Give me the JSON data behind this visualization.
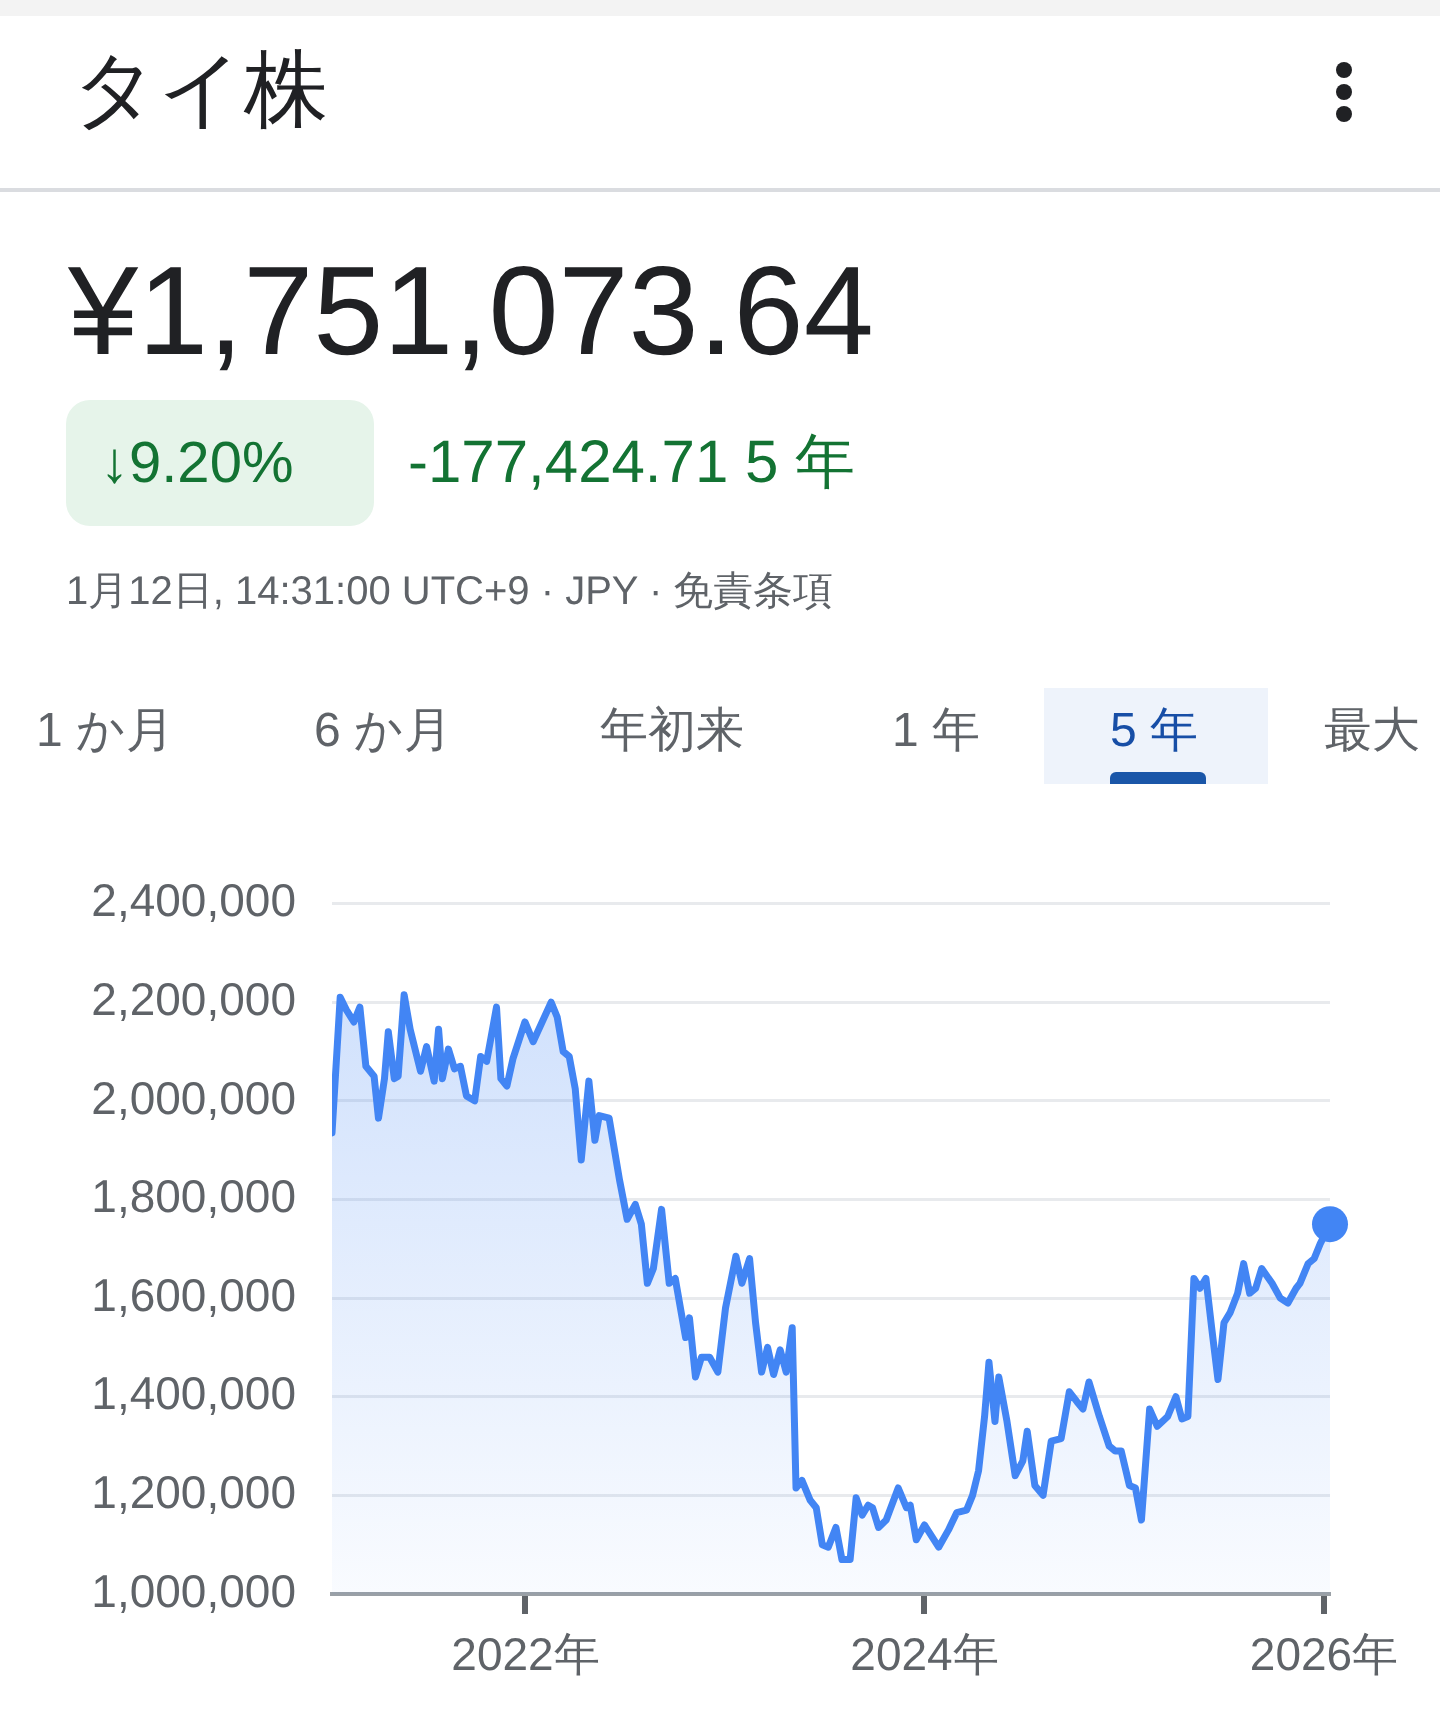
{
  "chart_data": {
    "type": "area",
    "title": "タイ株",
    "annotations": [
      "¥1,751,073.64",
      "↓9.20%",
      "-177,424.71 5 年",
      "1月12日, 14:31:00 UTC+9 · JPY · 免責条項",
      "1 か月",
      "6 か月",
      "年初来",
      "1 年",
      "5 年",
      "最大"
    ],
    "x": [
      "2021-01-12",
      "2021-01-27",
      "2021-02-07",
      "2021-02-21",
      "2021-03-04",
      "2021-03-15",
      "2021-03-30",
      "2021-04-07",
      "2021-04-18",
      "2021-04-25",
      "2021-05-06",
      "2021-05-13",
      "2021-05-24",
      "2021-06-04",
      "2021-06-23",
      "2021-07-04",
      "2021-07-18",
      "2021-07-26",
      "2021-08-02",
      "2021-08-13",
      "2021-08-24",
      "2021-09-04",
      "2021-09-15",
      "2021-09-30",
      "2021-10-11",
      "2021-10-22",
      "2021-11-09",
      "2021-11-17",
      "2021-11-28",
      "2021-12-09",
      "2021-12-31",
      "2022-01-15",
      "2022-02-17",
      "2022-02-28",
      "2022-03-11",
      "2022-03-22",
      "2022-04-02",
      "2022-04-13",
      "2022-04-27",
      "2022-05-08",
      "2022-05-16",
      "2022-06-03",
      "2022-06-22",
      "2022-07-06",
      "2022-07-21",
      "2022-08-01",
      "2022-08-12",
      "2022-08-23",
      "2022-09-07",
      "2022-09-21",
      "2022-10-02",
      "2022-10-21",
      "2022-10-28",
      "2022-11-08",
      "2022-11-19",
      "2022-12-04",
      "2022-12-19",
      "2023-01-02",
      "2023-01-21",
      "2023-02-01",
      "2023-02-15",
      "2023-02-26",
      "2023-03-09",
      "2023-03-20",
      "2023-03-31",
      "2023-04-12",
      "2023-04-23",
      "2023-05-04",
      "2023-05-11",
      "2023-05-22",
      "2023-06-06",
      "2023-06-17",
      "2023-06-28",
      "2023-07-09",
      "2023-07-23",
      "2023-08-03",
      "2023-08-18",
      "2023-08-29",
      "2023-09-09",
      "2023-09-20",
      "2023-09-28",
      "2023-10-09",
      "2023-10-23",
      "2023-11-14",
      "2023-11-29",
      "2023-12-06",
      "2023-12-17",
      "2024-01-01",
      "2024-01-27",
      "2024-02-14",
      "2024-02-29",
      "2024-03-18",
      "2024-03-29",
      "2024-04-09",
      "2024-04-20",
      "2024-04-28",
      "2024-05-09",
      "2024-05-16",
      "2024-05-31",
      "2024-06-15",
      "2024-06-29",
      "2024-07-07",
      "2024-07-21",
      "2024-08-05",
      "2024-08-20",
      "2024-09-07",
      "2024-09-22",
      "2024-10-06",
      "2024-10-17",
      "2024-10-28",
      "2024-11-16",
      "2024-12-04",
      "2024-12-15",
      "2024-12-26",
      "2025-01-10",
      "2025-01-21",
      "2025-02-01",
      "2025-02-16",
      "2025-03-02",
      "2025-03-21",
      "2025-04-05",
      "2025-04-16",
      "2025-04-27",
      "2025-05-08",
      "2025-05-19",
      "2025-05-30",
      "2025-06-10",
      "2025-06-21",
      "2025-07-02",
      "2025-07-13",
      "2025-07-27",
      "2025-08-07",
      "2025-08-18",
      "2025-08-29",
      "2025-09-09",
      "2025-09-28",
      "2025-10-13",
      "2025-10-27",
      "2025-11-11",
      "2025-11-18",
      "2025-12-03",
      "2025-12-14",
      "2025-12-25",
      "2026-01-12"
    ],
    "series": [
      {
        "color": "#4285f4",
        "marker": "none",
        "values": [
          1935000,
          2210000,
          2185000,
          2160000,
          2190000,
          2070000,
          2050000,
          1965000,
          2045000,
          2140000,
          2045000,
          2050000,
          2215000,
          2145000,
          2060000,
          2110000,
          2040000,
          2145000,
          2045000,
          2105000,
          2065000,
          2070000,
          2010000,
          2000000,
          2090000,
          2080000,
          2190000,
          2045000,
          2030000,
          2085000,
          2160000,
          2120000,
          2200000,
          2170000,
          2100000,
          2090000,
          2025000,
          1880000,
          2040000,
          1920000,
          1970000,
          1965000,
          1840000,
          1760000,
          1790000,
          1750000,
          1630000,
          1660000,
          1780000,
          1630000,
          1640000,
          1520000,
          1560000,
          1440000,
          1480000,
          1480000,
          1450000,
          1580000,
          1685000,
          1630000,
          1680000,
          1550000,
          1450000,
          1500000,
          1445000,
          1495000,
          1450000,
          1540000,
          1215000,
          1230000,
          1190000,
          1175000,
          1100000,
          1095000,
          1135000,
          1070000,
          1070000,
          1195000,
          1160000,
          1180000,
          1175000,
          1135000,
          1150000,
          1215000,
          1175000,
          1180000,
          1110000,
          1140000,
          1095000,
          1130000,
          1165000,
          1170000,
          1200000,
          1250000,
          1360000,
          1470000,
          1350000,
          1440000,
          1350000,
          1240000,
          1270000,
          1330000,
          1220000,
          1200000,
          1310000,
          1315000,
          1410000,
          1390000,
          1375000,
          1430000,
          1360000,
          1300000,
          1290000,
          1290000,
          1220000,
          1215000,
          1150000,
          1375000,
          1340000,
          1360000,
          1400000,
          1355000,
          1360000,
          1640000,
          1620000,
          1640000,
          1535000,
          1435000,
          1550000,
          1570000,
          1610000,
          1670000,
          1610000,
          1620000,
          1660000,
          1630000,
          1600000,
          1590000,
          1620000,
          1630000,
          1670000,
          1680000,
          1710000,
          1750000
        ]
      },
      {
        "type": "scatter",
        "color": "#4285f4",
        "marker": "circle",
        "x": [
          "2026-01-12"
        ],
        "values": [
          1750000
        ]
      }
    ],
    "xlim": [
      "2021-01-12",
      "2026-01-12"
    ],
    "xticks": [
      {
        "value": "2022",
        "label": "2022年"
      },
      {
        "value": "2024",
        "label": "2024年"
      },
      {
        "value": "2026",
        "label": "2026年"
      }
    ],
    "ylim": [
      1000000,
      2400000
    ],
    "yticks": [
      {
        "value": 1000000,
        "label": "1,000,000"
      },
      {
        "value": 1200000,
        "label": "1,200,000"
      },
      {
        "value": 1400000,
        "label": "1,400,000"
      },
      {
        "value": 1600000,
        "label": "1,600,000"
      },
      {
        "value": 1800000,
        "label": "1,800,000"
      },
      {
        "value": 2000000,
        "label": "2,000,000"
      },
      {
        "value": 2200000,
        "label": "2,200,000"
      },
      {
        "value": 2400000,
        "label": "2,400,000"
      }
    ],
    "grid": "y"
  }
}
